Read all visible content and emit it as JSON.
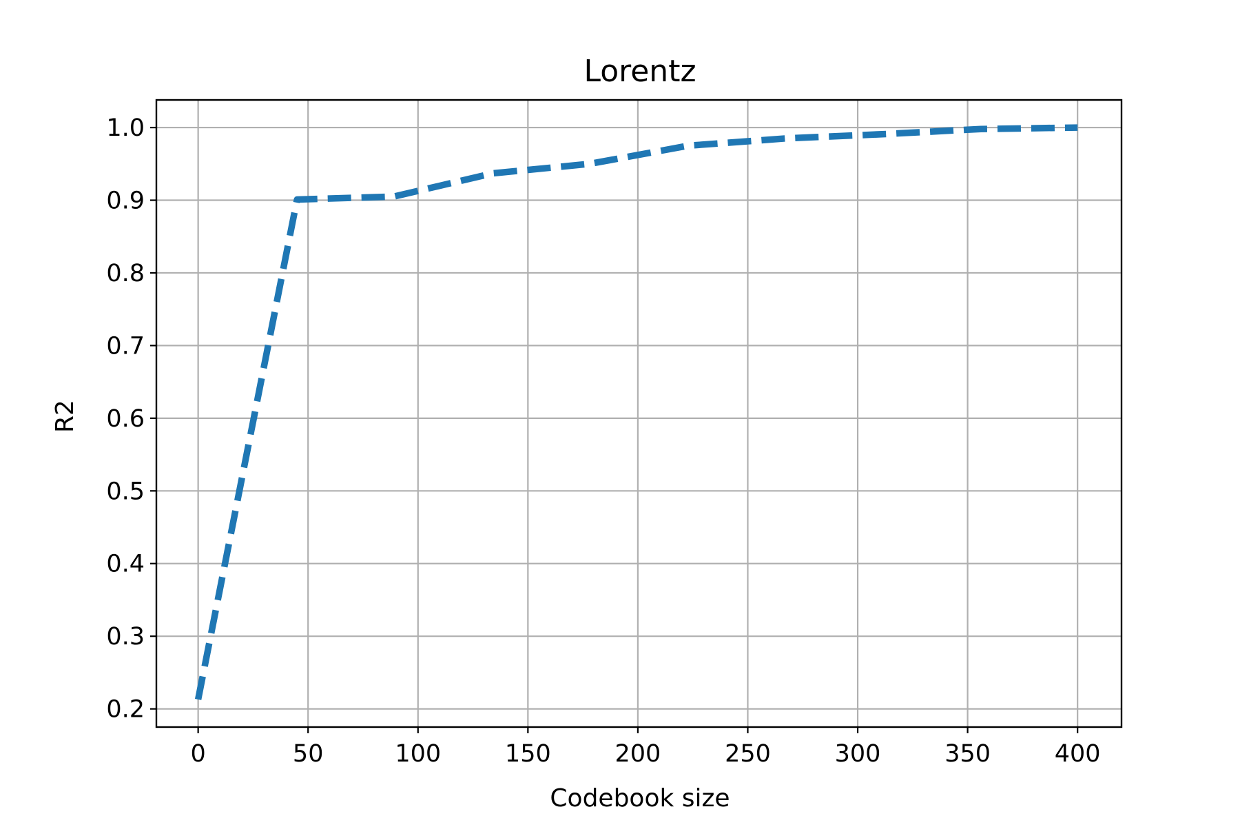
{
  "chart_data": {
    "type": "line",
    "title": "Lorentz",
    "xlabel": "Codebook size",
    "ylabel": "R2",
    "xlim": [
      -19,
      420
    ],
    "ylim": [
      0.175,
      1.038
    ],
    "xticks": [
      0,
      50,
      100,
      150,
      200,
      250,
      300,
      350,
      400
    ],
    "xtick_labels": [
      "0",
      "50",
      "100",
      "150",
      "200",
      "250",
      "300",
      "350",
      "400"
    ],
    "yticks": [
      0.2,
      0.3,
      0.4,
      0.5,
      0.6,
      0.7,
      0.8,
      0.9,
      1.0
    ],
    "ytick_labels": [
      "0.2",
      "0.3",
      "0.4",
      "0.5",
      "0.6",
      "0.7",
      "0.8",
      "0.9",
      "1.0"
    ],
    "grid": true,
    "series": [
      {
        "color": "#1f77b4",
        "linestyle": "dashed",
        "x": [
          0,
          45,
          89,
          134,
          178,
          223,
          267,
          312,
          356,
          400
        ],
        "y": [
          0.213,
          0.901,
          0.905,
          0.937,
          0.95,
          0.975,
          0.985,
          0.991,
          0.998,
          1.0
        ]
      }
    ]
  }
}
